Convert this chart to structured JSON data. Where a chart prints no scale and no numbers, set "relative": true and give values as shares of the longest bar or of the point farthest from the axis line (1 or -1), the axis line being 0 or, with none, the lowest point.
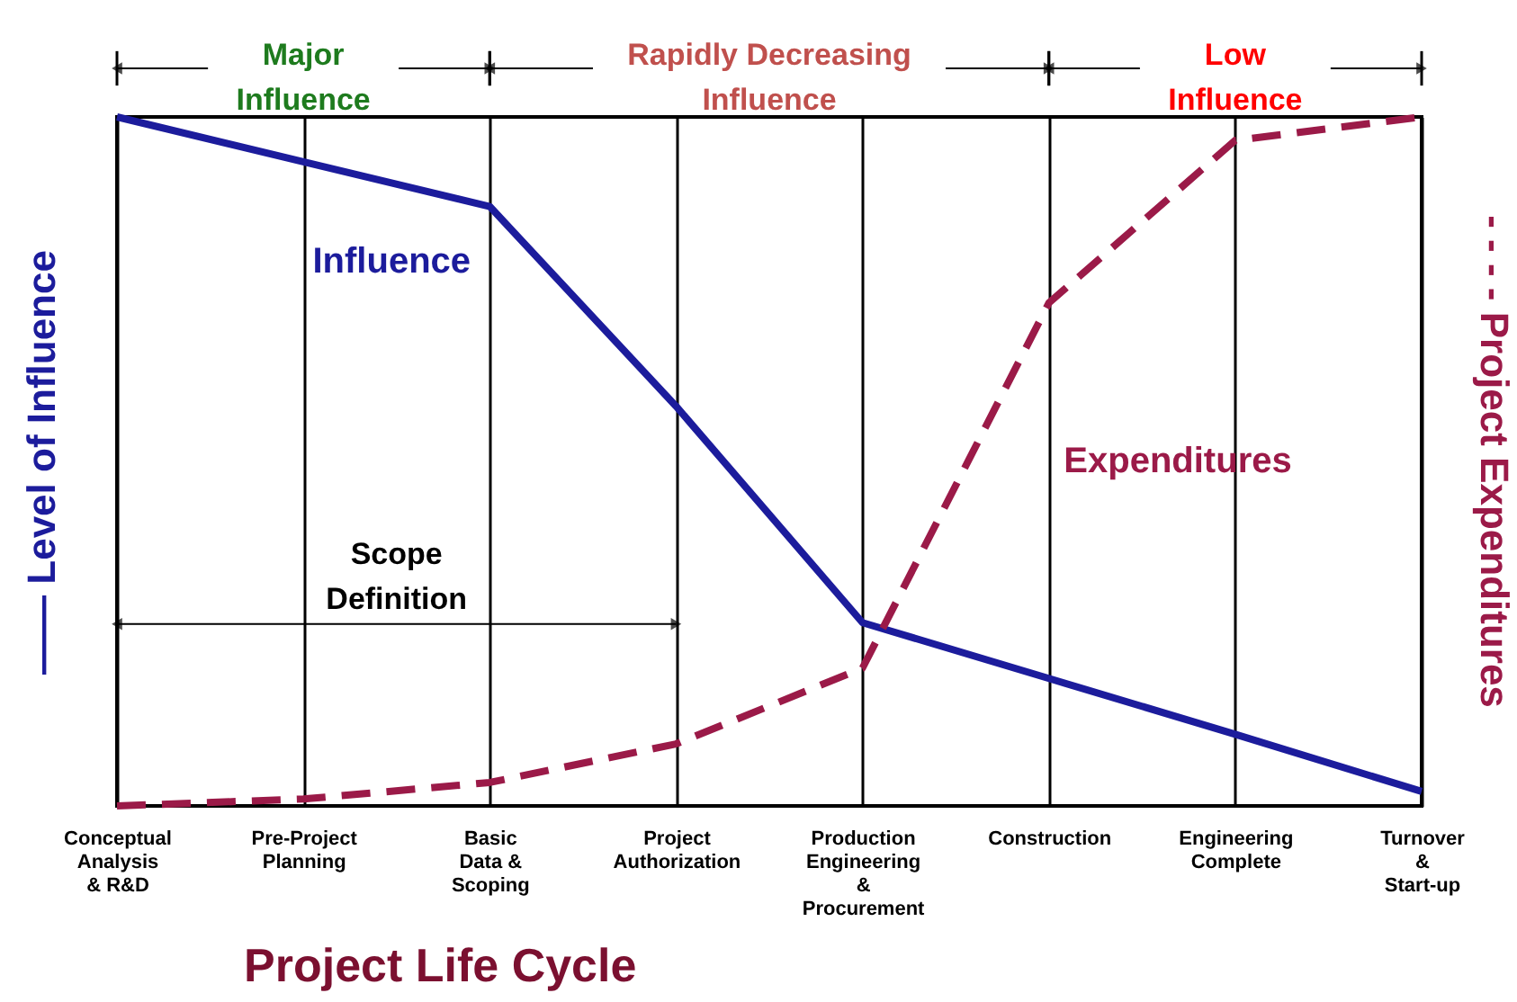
{
  "chart_data": {
    "type": "line",
    "relative": true,
    "xlabel": "Project Life Cycle",
    "ylabel": "—— Level of Influence",
    "y2label": "- - - - Project Expenditures",
    "categories": [
      "Conceptual\nAnalysis\n& R&D",
      "Pre-Project\nPlanning",
      "Basic\nData &\nScoping",
      "Project\nAuthorization",
      "Production\nEngineering\n&\nProcurement",
      "Construction",
      "Engineering\nComplete",
      "Turnover\n&\nStart-up"
    ],
    "series": [
      {
        "name": "Influence",
        "color": "#1c1c9c",
        "line_style": "solid",
        "values": [
          1.0,
          0.935,
          0.87,
          0.58,
          0.266,
          0.185,
          0.104,
          0.021
        ]
      },
      {
        "name": "Expenditures",
        "color": "#9b1a48",
        "line_style": "dashed",
        "values": [
          0,
          0.01,
          0.034,
          0.09,
          0.2,
          0.73,
          0.966,
          1.0
        ]
      }
    ],
    "annotations": [
      "Major\nInfluence",
      "Rapidly Decreasing\nInfluence",
      "Low\nInfluence",
      "Scope\nDefinition"
    ],
    "grid": "x"
  }
}
